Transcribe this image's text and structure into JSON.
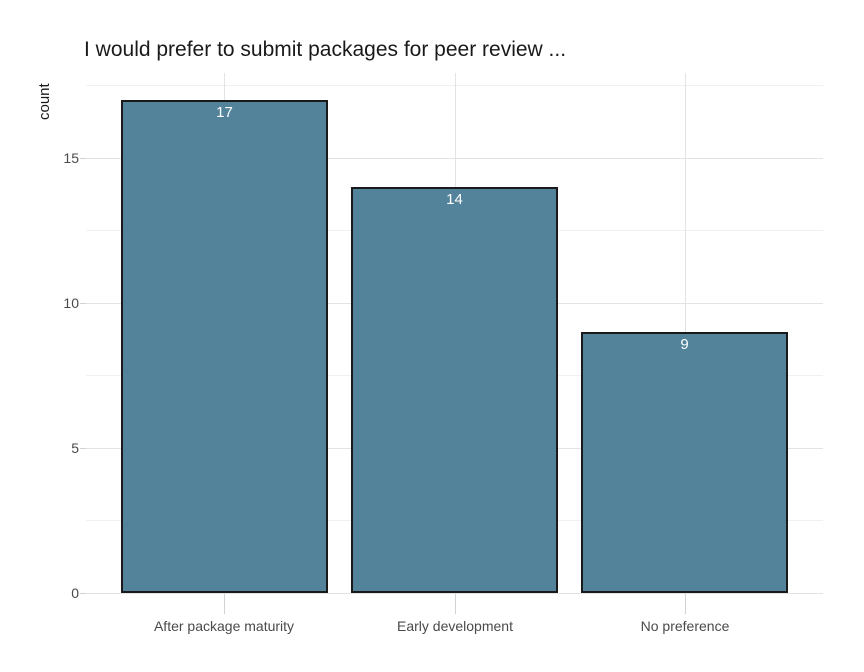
{
  "chart_data": {
    "type": "bar",
    "title": "I would prefer to submit packages for peer review ...",
    "ylabel": "count",
    "xlabel": "",
    "categories": [
      "After package maturity",
      "Early development",
      "No preference"
    ],
    "values": [
      17,
      14,
      9
    ],
    "bar_value_labels": [
      "17",
      "14",
      "9"
    ],
    "ylim": [
      0,
      17.93
    ],
    "yticks_major": [
      0,
      5,
      10,
      15
    ],
    "yticks_minor": [
      2.5,
      7.5,
      12.5,
      17.5
    ],
    "legend_position": "none",
    "grid": {
      "horizontal_major": true,
      "horizontal_minor": true,
      "vertical_at_category_centers": true
    },
    "colors": {
      "background": "#ffffff",
      "bar_fill": "#53839B",
      "bar_border": "#1a1a1a",
      "bar_value_label": "#ffffff",
      "grid_major": "#e3e3e3",
      "grid_minor": "#f1f1f1",
      "tick_mark": "#d2d2d2",
      "tick_label": "#4a4a4a",
      "title": "#1a1a1a",
      "axis_title": "#1a1a1a"
    }
  }
}
